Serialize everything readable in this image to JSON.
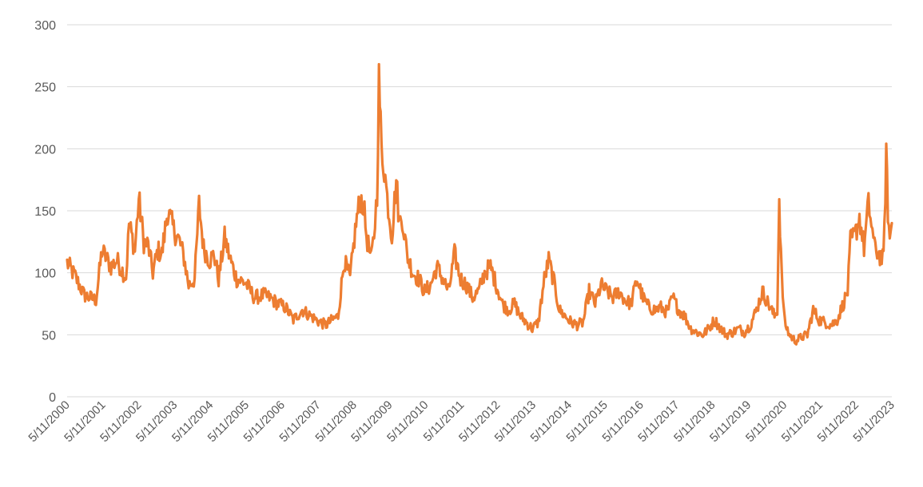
{
  "chart_data": {
    "type": "line",
    "title": "",
    "xlabel": "",
    "ylabel": "",
    "ylim": [
      0,
      300
    ],
    "yticks": [
      0,
      50,
      100,
      150,
      200,
      250,
      300
    ],
    "xlim": [
      "5/11/2000",
      "5/11/2023"
    ],
    "xtick_labels": [
      "5/11/2000",
      "5/11/2001",
      "5/11/2002",
      "5/11/2003",
      "5/11/2004",
      "5/11/2005",
      "5/11/2006",
      "5/11/2007",
      "5/11/2008",
      "5/11/2009",
      "5/11/2010",
      "5/11/2011",
      "5/11/2012",
      "5/11/2013",
      "5/11/2014",
      "5/11/2015",
      "5/11/2016",
      "5/11/2017",
      "5/11/2018",
      "5/11/2019",
      "5/11/2020",
      "5/11/2021",
      "5/11/2022",
      "5/11/2023"
    ],
    "grid": true,
    "legend": "none",
    "series": [
      {
        "color": "#ED7D31",
        "points": [
          [
            "5/11/2000",
            108
          ],
          [
            "8/1/2000",
            97
          ],
          [
            "11/1/2000",
            82
          ],
          [
            "3/1/2001",
            78
          ],
          [
            "5/1/2001",
            118
          ],
          [
            "8/1/2001",
            105
          ],
          [
            "10/1/2001",
            110
          ],
          [
            "1/1/2002",
            96
          ],
          [
            "2/1/2002",
            140
          ],
          [
            "4/1/2002",
            118
          ],
          [
            "5/11/2002",
            160
          ],
          [
            "7/1/2002",
            125
          ],
          [
            "8/15/2002",
            122
          ],
          [
            "10/1/2002",
            100
          ],
          [
            "11/20/2002",
            118
          ],
          [
            "1/1/2003",
            115
          ],
          [
            "3/1/2003",
            150
          ],
          [
            "5/1/2003",
            135
          ],
          [
            "7/1/2003",
            125
          ],
          [
            "8/15/2003",
            112
          ],
          [
            "10/1/2003",
            90
          ],
          [
            "12/1/2003",
            95
          ],
          [
            "1/15/2004",
            155
          ],
          [
            "3/1/2004",
            120
          ],
          [
            "5/1/2004",
            110
          ],
          [
            "6/15/2004",
            115
          ],
          [
            "8/1/2004",
            95
          ],
          [
            "10/1/2004",
            128
          ],
          [
            "12/1/2004",
            110
          ],
          [
            "2/1/2005",
            95
          ],
          [
            "5/1/2005",
            92
          ],
          [
            "8/1/2005",
            80
          ],
          [
            "11/1/2005",
            82
          ],
          [
            "1/1/2006",
            80
          ],
          [
            "4/1/2006",
            75
          ],
          [
            "6/15/2006",
            72
          ],
          [
            "9/1/2006",
            62
          ],
          [
            "12/1/2006",
            70
          ],
          [
            "3/1/2007",
            65
          ],
          [
            "6/1/2007",
            60
          ],
          [
            "8/1/2007",
            58
          ],
          [
            "10/1/2007",
            62
          ],
          [
            "12/1/2007",
            65
          ],
          [
            "2/1/2008",
            110
          ],
          [
            "4/1/2008",
            95
          ],
          [
            "6/1/2008",
            140
          ],
          [
            "7/15/2008",
            160
          ],
          [
            "8/15/2008",
            155
          ],
          [
            "9/15/2008",
            130
          ],
          [
            "11/1/2008",
            110
          ],
          [
            "12/1/2008",
            130
          ],
          [
            "1/1/2009",
            165
          ],
          [
            "1/20/2009",
            255
          ],
          [
            "2/15/2009",
            200
          ],
          [
            "3/15/2009",
            185
          ],
          [
            "4/15/2009",
            160
          ],
          [
            "6/1/2009",
            130
          ],
          [
            "7/15/2009",
            175
          ],
          [
            "8/15/2009",
            140
          ],
          [
            "9/15/2009",
            145
          ],
          [
            "11/1/2009",
            115
          ],
          [
            "1/1/2010",
            100
          ],
          [
            "3/1/2010",
            95
          ],
          [
            "5/1/2010",
            85
          ],
          [
            "7/1/2010",
            90
          ],
          [
            "9/1/2010",
            105
          ],
          [
            "11/1/2010",
            95
          ],
          [
            "1/1/2011",
            85
          ],
          [
            "3/1/2011",
            115
          ],
          [
            "5/1/2011",
            95
          ],
          [
            "7/1/2011",
            90
          ],
          [
            "9/1/2011",
            80
          ],
          [
            "11/1/2011",
            85
          ],
          [
            "1/1/2012",
            100
          ],
          [
            "3/1/2012",
            105
          ],
          [
            "5/1/2012",
            90
          ],
          [
            "7/1/2012",
            75
          ],
          [
            "9/1/2012",
            70
          ],
          [
            "11/1/2012",
            75
          ],
          [
            "1/1/2013",
            65
          ],
          [
            "3/1/2013",
            60
          ],
          [
            "5/1/2013",
            55
          ],
          [
            "7/1/2013",
            60
          ],
          [
            "9/1/2013",
            95
          ],
          [
            "10/15/2013",
            110
          ],
          [
            "12/1/2013",
            95
          ],
          [
            "2/1/2014",
            70
          ],
          [
            "4/1/2014",
            65
          ],
          [
            "6/1/2014",
            60
          ],
          [
            "8/1/2014",
            58
          ],
          [
            "10/1/2014",
            60
          ],
          [
            "12/1/2014",
            85
          ],
          [
            "2/1/2015",
            75
          ],
          [
            "4/1/2015",
            90
          ],
          [
            "6/1/2015",
            85
          ],
          [
            "8/1/2015",
            80
          ],
          [
            "10/1/2015",
            85
          ],
          [
            "12/1/2015",
            78
          ],
          [
            "2/1/2016",
            75
          ],
          [
            "4/1/2016",
            95
          ],
          [
            "6/1/2016",
            80
          ],
          [
            "8/1/2016",
            72
          ],
          [
            "10/1/2016",
            70
          ],
          [
            "12/1/2016",
            72
          ],
          [
            "2/1/2017",
            68
          ],
          [
            "4/1/2017",
            80
          ],
          [
            "6/1/2017",
            70
          ],
          [
            "8/1/2017",
            65
          ],
          [
            "10/1/2017",
            55
          ],
          [
            "12/1/2017",
            52
          ],
          [
            "2/1/2018",
            50
          ],
          [
            "4/1/2018",
            55
          ],
          [
            "6/1/2018",
            62
          ],
          [
            "8/1/2018",
            55
          ],
          [
            "10/1/2018",
            50
          ],
          [
            "12/1/2018",
            52
          ],
          [
            "2/1/2019",
            55
          ],
          [
            "4/1/2019",
            52
          ],
          [
            "6/1/2019",
            58
          ],
          [
            "8/1/2019",
            70
          ],
          [
            "10/1/2019",
            85
          ],
          [
            "12/1/2019",
            75
          ],
          [
            "2/1/2020",
            65
          ],
          [
            "3/1/2020",
            70
          ],
          [
            "3/20/2020",
            160
          ],
          [
            "4/15/2020",
            95
          ],
          [
            "5/15/2020",
            60
          ],
          [
            "7/1/2020",
            50
          ],
          [
            "9/1/2020",
            45
          ],
          [
            "11/1/2020",
            48
          ],
          [
            "1/1/2021",
            50
          ],
          [
            "3/1/2021",
            70
          ],
          [
            "5/1/2021",
            62
          ],
          [
            "7/1/2021",
            60
          ],
          [
            "9/1/2021",
            58
          ],
          [
            "11/1/2021",
            62
          ],
          [
            "1/1/2022",
            75
          ],
          [
            "2/15/2022",
            85
          ],
          [
            "3/15/2022",
            125
          ],
          [
            "5/1/2022",
            130
          ],
          [
            "6/15/2022",
            145
          ],
          [
            "8/1/2022",
            120
          ],
          [
            "9/15/2022",
            155
          ],
          [
            "10/15/2022",
            140
          ],
          [
            "11/15/2022",
            120
          ],
          [
            "1/1/2023",
            115
          ],
          [
            "2/15/2023",
            110
          ],
          [
            "3/15/2023",
            195
          ],
          [
            "4/1/2023",
            150
          ],
          [
            "4/20/2023",
            125
          ],
          [
            "5/11/2023",
            140
          ]
        ]
      }
    ]
  }
}
